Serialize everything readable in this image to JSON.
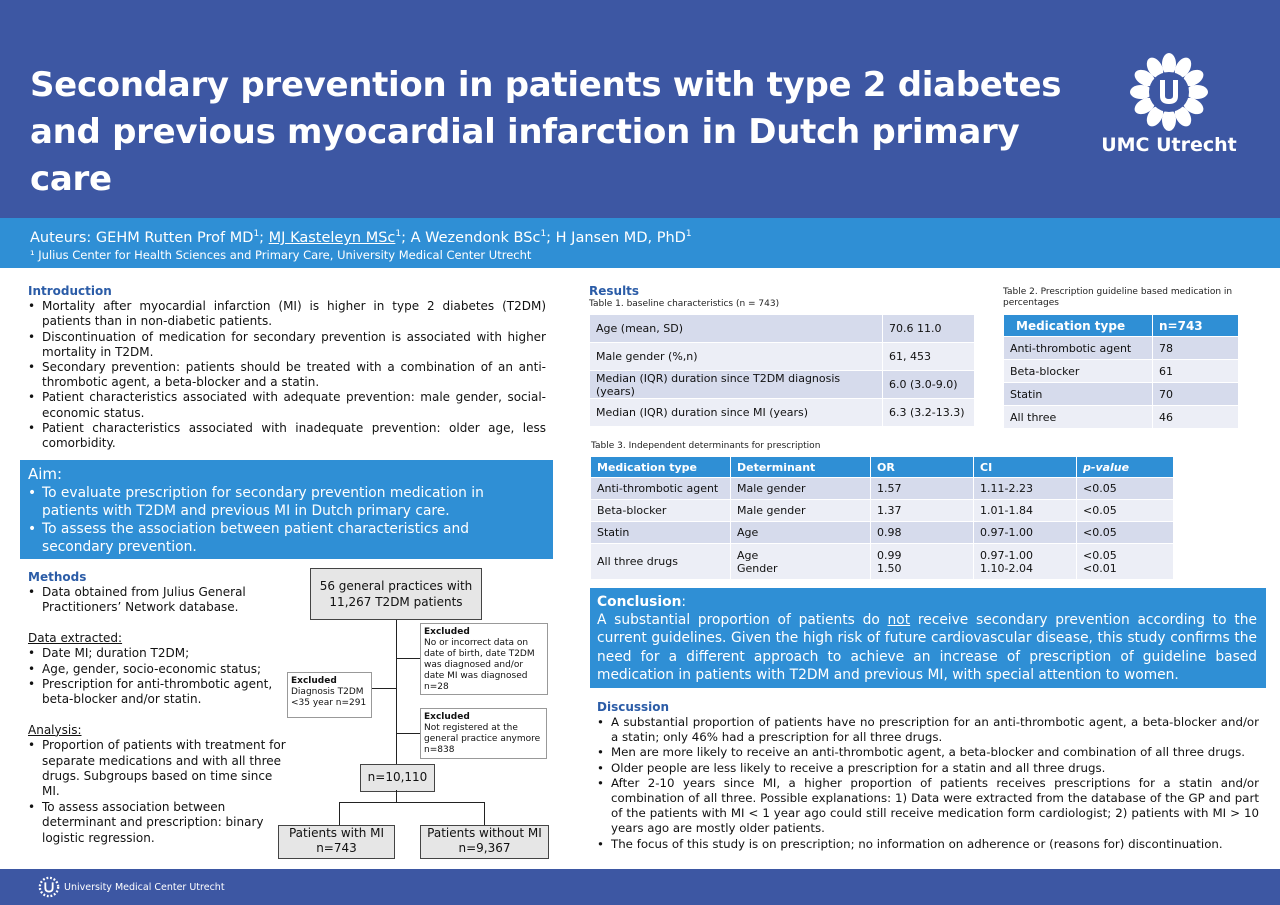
{
  "header": {
    "title_line1": "Secondary prevention in patients with type 2 diabetes",
    "title_line2": "and previous myocardial infarction in Dutch primary care",
    "logo_text": "UMC Utrecht"
  },
  "authors": {
    "prefix": "Auteurs: GEHM Rutten Prof MD",
    "sup": "1",
    "sep": "; ",
    "author2": "MJ Kasteleyn MSc",
    "author3": "A Wezendonk BSc",
    "author4": "H Jansen MD, PhD",
    "affiliation": "¹ Julius Center for Health Sciences and Primary Care, University Medical Center Utrecht"
  },
  "intro": {
    "heading": "Introduction",
    "items": [
      "Mortality after myocardial infarction (MI) is higher in type 2 diabetes (T2DM) patients than in non-diabetic patients.",
      "Discontinuation of medication for secondary prevention is associated with higher mortality in T2DM.",
      "Secondary prevention: patients should be treated with a combination of an anti-thrombotic agent, a beta-blocker and a statin.",
      "Patient characteristics associated with adequate prevention: male gender, social-economic status.",
      "Patient characteristics associated with inadequate prevention: older age, less comorbidity."
    ]
  },
  "aim": {
    "heading": "Aim:",
    "items": [
      "To evaluate prescription for secondary prevention medication in patients with T2DM and previous MI in Dutch primary care.",
      "To assess the association between patient characteristics and secondary prevention."
    ]
  },
  "methods": {
    "heading": "Methods",
    "item1": "Data obtained from Julius General Practitioners’ Network database.",
    "extracted_heading": "Data extracted:",
    "extracted": [
      "Date MI; duration T2DM;",
      "Age, gender, socio-economic status;",
      "Prescription for anti-thrombotic agent, beta-blocker and/or statin."
    ],
    "analysis_heading": "Analysis:",
    "analysis": [
      "Proportion of patients with treatment for separate medications and with all three drugs. Subgroups based on time since MI.",
      "To assess association between determinant and prescription: binary logistic regression."
    ]
  },
  "flow": {
    "top": "56 general practices with 11,267 T2DM patients",
    "excl1_title": "Excluded",
    "excl1_text": "No or incorrect data on date of birth, date T2DM was diagnosed and/or date MI was diagnosed n=28",
    "excl2_title": "Excluded",
    "excl2_text": "Diagnosis T2DM <35 year n=291",
    "excl3_title": "Excluded",
    "excl3_text": "Not registered at the general practice anymore n=838",
    "mid": "n=10,110",
    "left_line1": "Patients with MI",
    "left_line2": "n=743",
    "right_line1": "Patients without MI",
    "right_line2": "n=9,367"
  },
  "results": {
    "heading": "Results",
    "table1_caption": "Table 1. baseline characteristics (n = 743)",
    "table1": [
      [
        "Age (mean, SD)",
        "70.6    11.0"
      ],
      [
        "Male gender (%,n)",
        "61,  453"
      ],
      [
        "Median (IQR) duration since T2DM diagnosis (years)",
        "6.0 (3.0-9.0)"
      ],
      [
        "Median (IQR)  duration since MI (years)",
        "6.3 (3.2-13.3)"
      ]
    ],
    "table2_caption": "Table 2. Prescription guideline based medication in percentages",
    "table2_headers": [
      "Medication type",
      "n=743"
    ],
    "table2": [
      [
        "Anti-thrombotic agent",
        "78"
      ],
      [
        "Beta-blocker",
        "61"
      ],
      [
        "Statin",
        "70"
      ],
      [
        "All three",
        "46"
      ]
    ],
    "table3_caption": "Table 3. Independent determinants for prescription",
    "table3_headers": [
      "Medication type",
      "Determinant",
      "OR",
      "CI",
      "p-value"
    ],
    "table3": [
      [
        "Anti-thrombotic agent",
        "Male gender",
        "1.57",
        "1.11-2.23",
        "<0.05"
      ],
      [
        "Beta-blocker",
        "Male gender",
        "1.37",
        "1.01-1.84",
        "<0.05"
      ],
      [
        "Statin",
        "Age",
        "0.98",
        "0.97-1.00",
        "<0.05"
      ],
      [
        "All three drugs",
        "Age\nGender",
        "0.99\n1.50",
        "0.97-1.00\n1.10-2.04",
        "<0.05\n<0.01"
      ]
    ]
  },
  "conclusion": {
    "heading": "Conclusion",
    "colon": ":",
    "text_pre": "A substantial proportion of patients do ",
    "text_not": "not",
    "text_post": " receive secondary prevention according to the current guidelines. Given the high risk of future cardiovascular disease, this study confirms the need for a different approach to achieve an increase of prescription of guideline based medication in patients with T2DM and previous MI, with special attention to women."
  },
  "discussion": {
    "heading": "Discussion",
    "items": [
      "A substantial proportion of patients have no prescription for an anti-thrombotic agent, a beta-blocker and/or  a statin; only 46% had a prescription for all three drugs.",
      "Men are more likely to receive an anti-thrombotic agent, a beta-blocker and combination of all three drugs.",
      "Older people are less likely to receive a prescription for a statin and all three drugs.",
      "After 2-10 years since MI, a higher proportion of patients receives prescriptions for a statin and/or combination of all three. Possible explanations: 1) Data were extracted from the database of the GP and part of the patients with MI < 1 year ago could still receive medication form cardiologist; 2) patients with MI > 10 years ago are mostly older patients.",
      "The focus of this study is on prescription; no information on adherence or (reasons for) discontinuation."
    ]
  },
  "footer": {
    "text": "University Medical Center Utrecht"
  },
  "colors": {
    "header_blue": "#3d57a3",
    "accent_blue": "#2f8fd5",
    "heading_blue": "#2b5ca7"
  }
}
